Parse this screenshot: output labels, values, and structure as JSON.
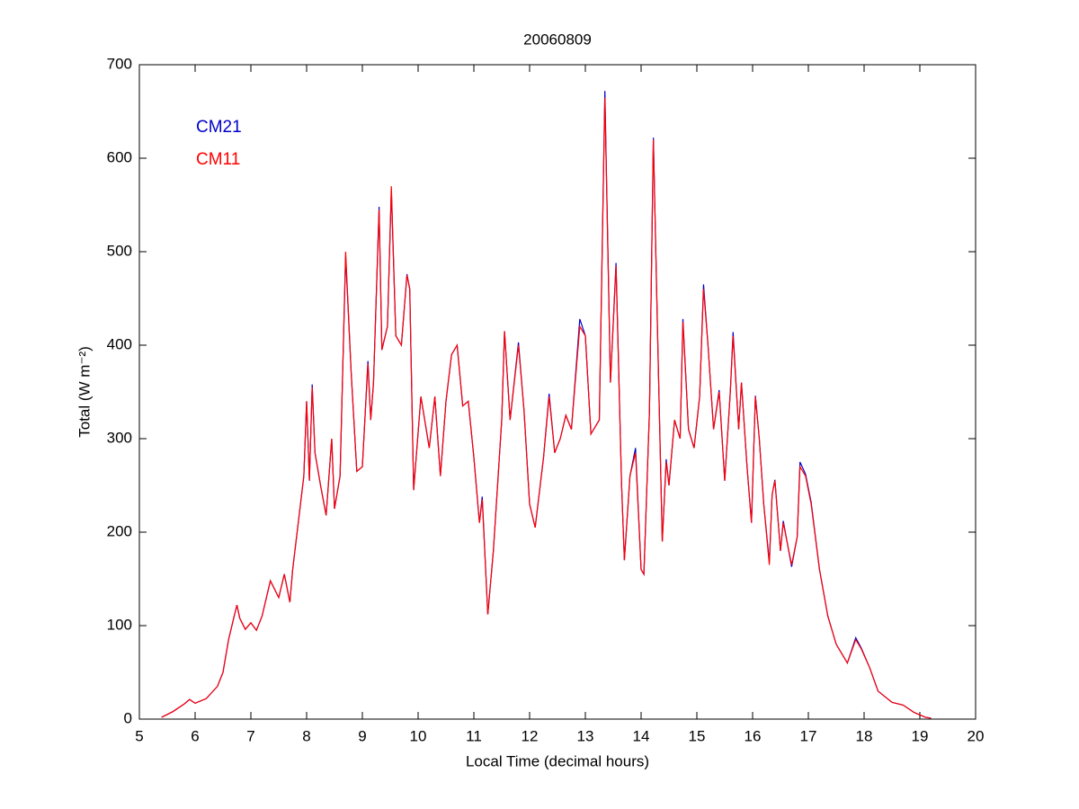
{
  "chart_data": {
    "type": "line",
    "title": "20060809",
    "xlabel": "Local Time (decimal hours)",
    "ylabel": "Total (W m⁻²)",
    "xlim": [
      5,
      20
    ],
    "ylim": [
      0,
      700
    ],
    "xticks": [
      5,
      6,
      7,
      8,
      9,
      10,
      11,
      12,
      13,
      14,
      15,
      16,
      17,
      18,
      19,
      20
    ],
    "yticks": [
      0,
      100,
      200,
      300,
      400,
      500,
      600,
      700
    ],
    "legend": "upper left",
    "x": [
      5.4,
      5.6,
      5.8,
      5.9,
      6.0,
      6.2,
      6.4,
      6.5,
      6.6,
      6.7,
      6.75,
      6.8,
      6.9,
      7.0,
      7.1,
      7.2,
      7.35,
      7.5,
      7.6,
      7.7,
      7.75,
      7.85,
      7.95,
      8.0,
      8.05,
      8.1,
      8.15,
      8.25,
      8.35,
      8.45,
      8.5,
      8.6,
      8.7,
      8.8,
      8.9,
      9.0,
      9.1,
      9.15,
      9.2,
      9.3,
      9.35,
      9.45,
      9.52,
      9.6,
      9.7,
      9.8,
      9.85,
      9.92,
      10.05,
      10.2,
      10.3,
      10.4,
      10.5,
      10.6,
      10.7,
      10.8,
      10.9,
      11.0,
      11.1,
      11.15,
      11.25,
      11.35,
      11.5,
      11.55,
      11.65,
      11.8,
      11.9,
      12.0,
      12.1,
      12.25,
      12.35,
      12.45,
      12.55,
      12.65,
      12.75,
      12.9,
      13.0,
      13.1,
      13.25,
      13.35,
      13.45,
      13.55,
      13.65,
      13.7,
      13.8,
      13.9,
      14.0,
      14.05,
      14.15,
      14.22,
      14.3,
      14.38,
      14.45,
      14.5,
      14.6,
      14.7,
      14.75,
      14.85,
      14.95,
      15.05,
      15.12,
      15.2,
      15.3,
      15.4,
      15.5,
      15.6,
      15.65,
      15.75,
      15.8,
      15.9,
      15.98,
      16.05,
      16.12,
      16.2,
      16.3,
      16.35,
      16.4,
      16.5,
      16.55,
      16.7,
      16.8,
      16.85,
      16.95,
      17.05,
      17.2,
      17.35,
      17.5,
      17.7,
      17.85,
      17.95,
      18.1,
      18.25,
      18.5,
      18.7,
      18.9,
      19.1,
      19.2
    ],
    "series": [
      {
        "name": "CM21",
        "color": "#0000cc",
        "values": [
          2,
          8,
          16,
          21,
          17,
          22,
          35,
          50,
          85,
          110,
          122,
          108,
          96,
          103,
          95,
          110,
          148,
          130,
          155,
          125,
          160,
          210,
          260,
          340,
          255,
          358,
          285,
          250,
          218,
          300,
          225,
          260,
          495,
          370,
          265,
          270,
          383,
          320,
          360,
          548,
          395,
          420,
          565,
          410,
          400,
          476,
          460,
          245,
          345,
          290,
          345,
          260,
          340,
          390,
          400,
          335,
          340,
          280,
          210,
          238,
          112,
          180,
          320,
          415,
          320,
          403,
          330,
          230,
          205,
          280,
          348,
          285,
          300,
          325,
          310,
          428,
          410,
          305,
          320,
          672,
          360,
          488,
          250,
          170,
          260,
          290,
          160,
          155,
          330,
          622,
          400,
          190,
          278,
          250,
          320,
          300,
          428,
          310,
          290,
          345,
          465,
          400,
          310,
          352,
          255,
          350,
          414,
          310,
          360,
          270,
          210,
          346,
          300,
          230,
          168,
          240,
          256,
          180,
          212,
          163,
          195,
          275,
          262,
          232,
          160,
          110,
          80,
          60,
          87,
          76,
          55,
          30,
          18,
          15,
          7,
          2,
          1
        ]
      },
      {
        "name": "CM11",
        "color": "#ff0000",
        "values": [
          2,
          8,
          16,
          21,
          17,
          22,
          35,
          50,
          85,
          110,
          122,
          108,
          96,
          103,
          95,
          110,
          148,
          130,
          155,
          125,
          160,
          210,
          260,
          340,
          255,
          355,
          285,
          250,
          218,
          300,
          225,
          260,
          500,
          370,
          265,
          270,
          380,
          320,
          360,
          545,
          395,
          420,
          570,
          410,
          400,
          475,
          460,
          245,
          345,
          290,
          345,
          260,
          340,
          390,
          400,
          335,
          340,
          280,
          210,
          235,
          112,
          180,
          320,
          415,
          320,
          400,
          330,
          230,
          205,
          280,
          345,
          285,
          300,
          325,
          310,
          420,
          410,
          305,
          320,
          665,
          360,
          485,
          250,
          170,
          260,
          285,
          160,
          155,
          330,
          620,
          400,
          190,
          275,
          250,
          320,
          300,
          425,
          310,
          290,
          345,
          460,
          400,
          310,
          350,
          255,
          350,
          410,
          310,
          360,
          270,
          210,
          345,
          300,
          230,
          165,
          240,
          255,
          180,
          210,
          165,
          195,
          270,
          260,
          230,
          160,
          110,
          80,
          60,
          85,
          75,
          55,
          30,
          18,
          15,
          7,
          2,
          1
        ]
      }
    ]
  }
}
